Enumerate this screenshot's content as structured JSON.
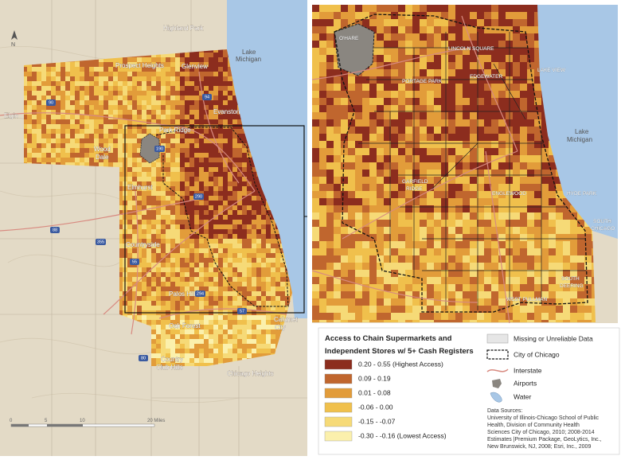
{
  "map": {
    "title_line1": "Access to Chain Supermarkets and",
    "title_line2": "Independent Stores w/ 5+ Cash Registers",
    "classes": [
      {
        "label": "0.20 - 0.55 (Highest Access)",
        "color": "#8c2d1e"
      },
      {
        "label": "0.09 - 0.19",
        "color": "#c0662e"
      },
      {
        "label": "0.01 - 0.08",
        "color": "#e29c3a"
      },
      {
        "label": "-0.06 - 0.00",
        "color": "#f0c04c"
      },
      {
        "label": "-0.15 - -0.07",
        "color": "#f6da77"
      },
      {
        "label": "-0.30 - -0.16 (Lowest Access)",
        "color": "#fbf0ac"
      }
    ],
    "reference": [
      {
        "label": "Missing or Unreliable Data"
      },
      {
        "label": "City of Chicago"
      },
      {
        "label": "Interstate"
      },
      {
        "label": "Airports"
      },
      {
        "label": "Water"
      }
    ],
    "sources": [
      "Data Sources:",
      "University of Illinois-Chicago School of Public",
      "Health, Division of Community Health",
      "Sciences City of Chicago, 2010; 2008-2014",
      "Estimates |Premium Package, GeoLytics, Inc.,",
      "New Brunswick, NJ, 2008; Esri, Inc., 2009"
    ],
    "places": [
      "Highland Park",
      "Lake",
      "Michigan",
      "Prospect Heights",
      "Glenview",
      "Evanston",
      "Elgin",
      "Wood",
      "Dale",
      "Park Ridge",
      "Elmhurst",
      "Countryside",
      "Palos Hills",
      "Oak Forest",
      "Calumet",
      "City",
      "Country",
      "Club Hills",
      "Chicago Heights"
    ],
    "inset_places": [
      "O'HARE",
      "LINCOLN SQUARE",
      "PORTAGE PARK",
      "EDGEWATER",
      "LAKE VIEW",
      "Lake",
      "Michigan",
      "GARFIELD",
      "RIDGE",
      "ENGLEWOOD",
      "HYDE PARK",
      "SOUTH",
      "CHICAGO",
      "SOUTH",
      "DEERING",
      "WEST PULLMAN"
    ],
    "shields": [
      "90",
      "94",
      "190",
      "290",
      "88",
      "355",
      "55",
      "294",
      "80",
      "57"
    ],
    "scale": [
      "0",
      "5",
      "10",
      "20 Miles"
    ],
    "north": "N"
  }
}
